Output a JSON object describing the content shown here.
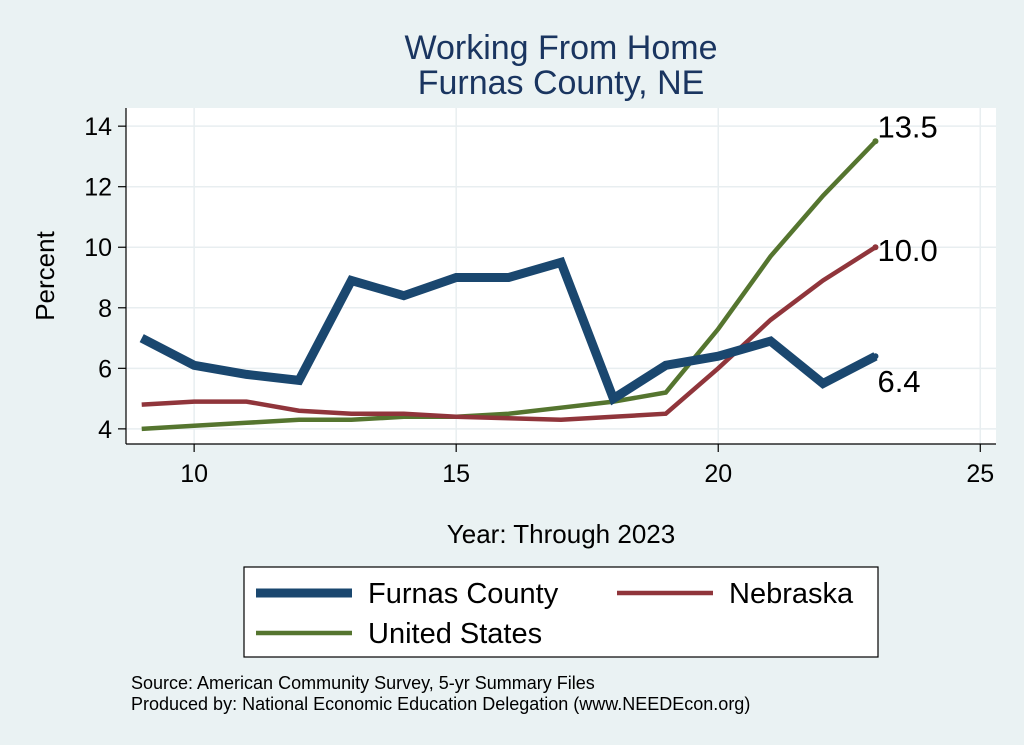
{
  "chart_data": {
    "type": "line",
    "title": [
      "Working From Home",
      "Furnas County, NE"
    ],
    "xlabel": "Year: Through 2023",
    "ylabel": "Percent",
    "xlim": [
      8.7,
      25.3
    ],
    "ylim": [
      3.5,
      14.6
    ],
    "xticks": [
      10,
      15,
      20,
      25
    ],
    "yticks": [
      4,
      6,
      8,
      10,
      12,
      14
    ],
    "grid": true,
    "legend_position": "bottom",
    "x": [
      9,
      10,
      11,
      12,
      13,
      14,
      15,
      16,
      17,
      18,
      19,
      20,
      21,
      22,
      23
    ],
    "series": [
      {
        "name": "Furnas County",
        "color": "#1a476f",
        "values": [
          7.0,
          6.1,
          5.8,
          5.6,
          8.9,
          8.4,
          9.0,
          9.0,
          9.5,
          5.0,
          6.1,
          6.4,
          6.9,
          5.5,
          6.4
        ],
        "end_label": "6.4"
      },
      {
        "name": "Nebraska",
        "color": "#90353b",
        "values": [
          4.8,
          4.9,
          4.9,
          4.6,
          4.5,
          4.5,
          4.4,
          4.35,
          4.3,
          4.4,
          4.5,
          6.0,
          7.6,
          8.9,
          10.0
        ],
        "end_label": "10.0"
      },
      {
        "name": "United States",
        "color": "#55752f",
        "values": [
          4.0,
          4.1,
          4.2,
          4.3,
          4.3,
          4.4,
          4.4,
          4.5,
          4.7,
          4.9,
          5.2,
          7.3,
          9.7,
          11.7,
          13.5
        ],
        "end_label": "13.5"
      }
    ],
    "notes": [
      "Source: American Community Survey, 5-yr Summary Files",
      "Produced by: National Economic Education Delegation (www.NEEDEcon.org)"
    ]
  }
}
